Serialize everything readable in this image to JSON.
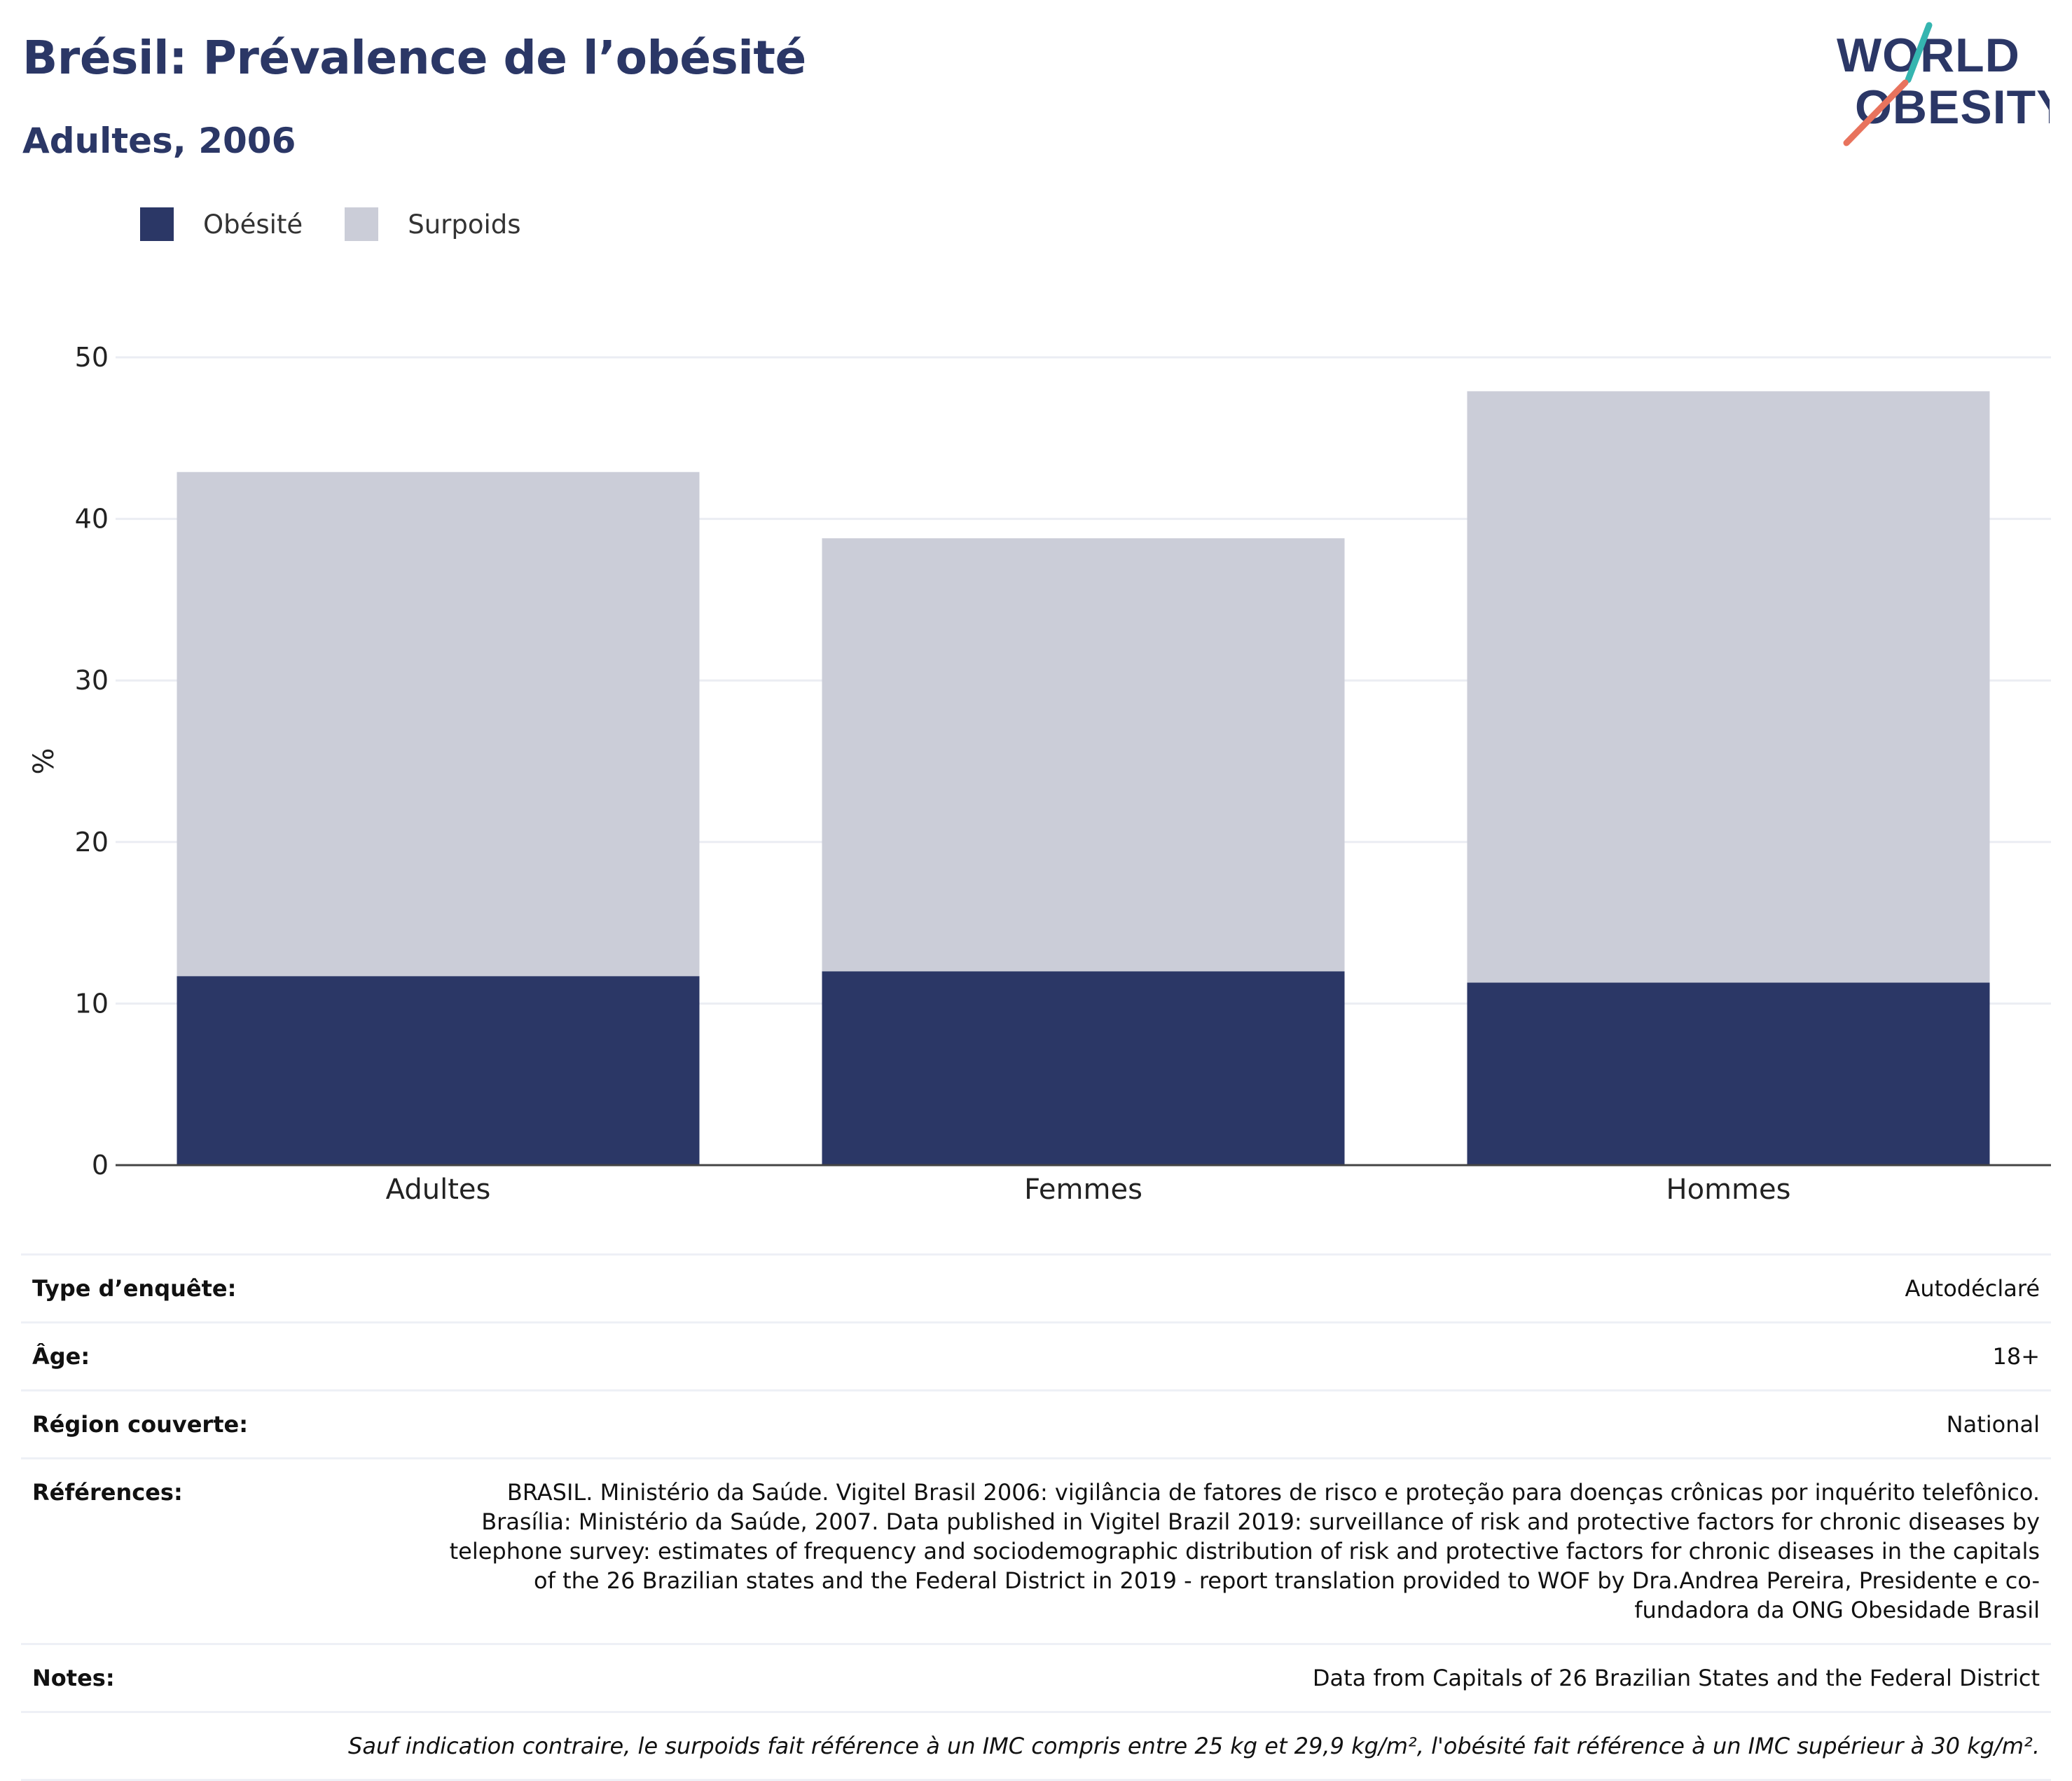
{
  "header": {
    "title": "Brésil: Prévalence de l’obésité",
    "subtitle": "Adultes, 2006"
  },
  "logo": {
    "line1": "WORLD",
    "line2": "OBESITY"
  },
  "colors": {
    "obesite": "#2b3766",
    "surpoids": "#cbcdd8",
    "title": "#2b3766"
  },
  "chart_data": {
    "type": "bar",
    "stacked": true,
    "categories": [
      "Adultes",
      "Femmes",
      "Hommes"
    ],
    "series": [
      {
        "name": "Obésité",
        "values": [
          11.7,
          12.0,
          11.3
        ],
        "color": "#2b3766"
      },
      {
        "name": "Surpoids",
        "values": [
          31.2,
          26.8,
          36.6
        ],
        "color": "#cbcdd8"
      }
    ],
    "ylabel": "%",
    "ylim": [
      0,
      50
    ],
    "yticks": [
      0,
      10,
      20,
      30,
      40,
      50
    ],
    "grid": true,
    "legend": "top-left"
  },
  "meta": {
    "survey_label": "Type d’enquête:",
    "survey_value": "Autodéclaré",
    "age_label": "Âge:",
    "age_value": "18+",
    "region_label": "Région couverte:",
    "region_value": "National",
    "refs_label": "Références:",
    "refs_value": "BRASIL. Ministério da Saúde. Vigitel Brasil 2006: vigilância de fatores de risco e proteção para doenças crônicas por inquérito telefônico. Brasília: Ministério da Saúde, 2007. Data published in Vigitel Brazil 2019: surveillance of risk and protective factors for chronic diseases by telephone survey: estimates of frequency and sociodemographic distribution of risk and protective factors for chronic diseases in the capitals of the 26 Brazilian states and the Federal District in 2019 - report translation provided to WOF by Dra.Andrea Pereira, Presidente e co-fundadora da ONG Obesidade Brasil",
    "notes_label": "Notes:",
    "notes_value": "Data from Capitals of 26 Brazilian States and the Federal District",
    "footnote": "Sauf indication contraire, le surpoids fait référence à un IMC compris entre 25 kg et 29,9 kg/m², l'obésité fait référence à un IMC supérieur à 30 kg/m²."
  }
}
